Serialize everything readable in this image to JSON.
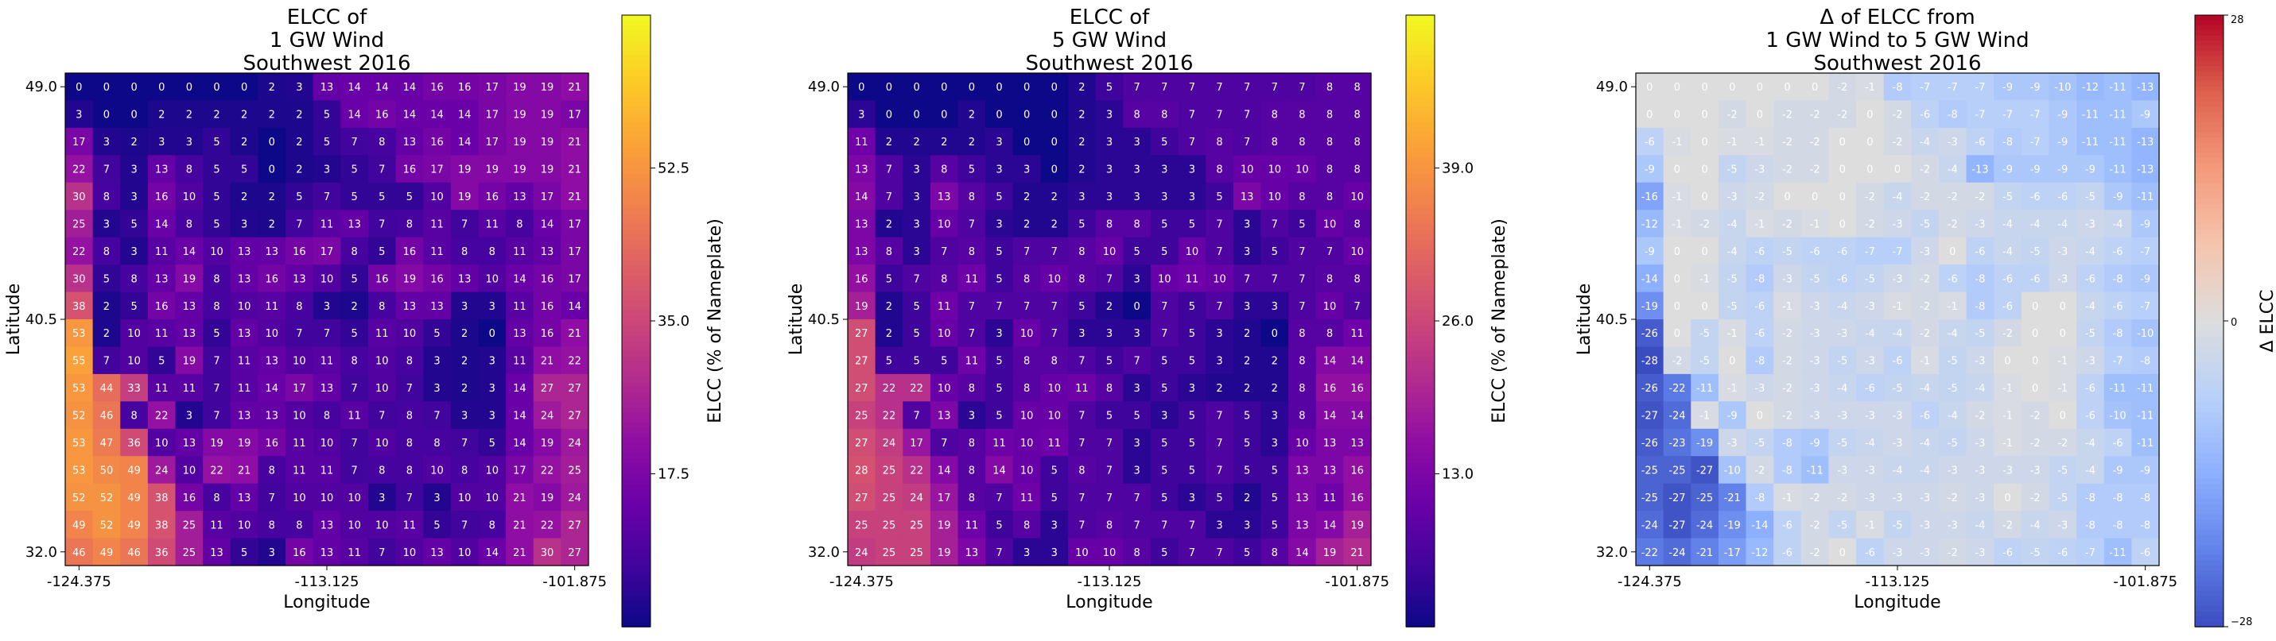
{
  "chart_data": [
    {
      "type": "heatmap",
      "title": [
        "ELCC of",
        "1 GW Wind",
        "Southwest 2016"
      ],
      "xlabel": "Longitude",
      "ylabel": "Latitude",
      "x_ticks": [
        "-124.375",
        "-113.125",
        "-101.875"
      ],
      "y_ticks": [
        "49.0",
        "40.5",
        "32.0"
      ],
      "colormap": "plasma",
      "colorbar_label": "ELCC (% of Nameplate)",
      "colorbar_ticks": [
        17.5,
        35.0,
        52.5
      ],
      "colorbar_tick_labels": [
        "17.5",
        "35.0",
        "52.5"
      ],
      "vmin": 0,
      "vmax": 70,
      "values": [
        [
          0,
          0,
          0,
          0,
          0,
          0,
          0,
          2,
          3,
          13,
          14,
          14,
          14,
          16,
          16,
          17,
          19,
          19,
          21
        ],
        [
          3,
          0,
          0,
          2,
          2,
          2,
          2,
          2,
          2,
          5,
          14,
          16,
          14,
          14,
          14,
          17,
          19,
          19,
          17
        ],
        [
          17,
          3,
          2,
          3,
          3,
          5,
          2,
          0,
          2,
          5,
          7,
          8,
          13,
          16,
          14,
          17,
          19,
          19,
          21
        ],
        [
          22,
          7,
          3,
          13,
          8,
          5,
          5,
          0,
          2,
          3,
          5,
          7,
          16,
          17,
          19,
          19,
          19,
          19,
          21
        ],
        [
          30,
          8,
          3,
          16,
          10,
          5,
          2,
          2,
          5,
          7,
          5,
          5,
          5,
          10,
          19,
          16,
          13,
          17,
          21
        ],
        [
          25,
          3,
          5,
          14,
          8,
          5,
          3,
          2,
          7,
          11,
          13,
          7,
          8,
          11,
          7,
          11,
          8,
          14,
          17
        ],
        [
          22,
          8,
          3,
          11,
          14,
          10,
          13,
          13,
          16,
          17,
          8,
          5,
          16,
          11,
          8,
          8,
          11,
          13,
          17
        ],
        [
          30,
          5,
          8,
          13,
          19,
          8,
          13,
          16,
          13,
          10,
          5,
          16,
          19,
          16,
          13,
          10,
          14,
          16,
          17
        ],
        [
          38,
          2,
          5,
          16,
          13,
          8,
          10,
          11,
          8,
          3,
          2,
          8,
          13,
          13,
          3,
          3,
          11,
          16,
          14
        ],
        [
          53,
          2,
          10,
          11,
          13,
          5,
          13,
          10,
          7,
          7,
          5,
          11,
          10,
          5,
          2,
          0,
          13,
          16,
          21
        ],
        [
          55,
          7,
          10,
          5,
          19,
          7,
          11,
          13,
          10,
          11,
          8,
          10,
          8,
          3,
          2,
          3,
          11,
          21,
          22
        ],
        [
          53,
          44,
          33,
          11,
          11,
          7,
          11,
          14,
          17,
          13,
          7,
          10,
          7,
          3,
          2,
          3,
          14,
          27,
          27
        ],
        [
          52,
          46,
          8,
          22,
          3,
          7,
          13,
          13,
          10,
          8,
          11,
          7,
          8,
          7,
          3,
          3,
          14,
          24,
          27
        ],
        [
          53,
          47,
          36,
          10,
          13,
          19,
          19,
          16,
          11,
          10,
          7,
          10,
          8,
          8,
          7,
          5,
          14,
          19,
          24
        ],
        [
          53,
          50,
          49,
          24,
          10,
          22,
          21,
          8,
          11,
          11,
          7,
          8,
          8,
          10,
          8,
          10,
          17,
          22,
          25
        ],
        [
          52,
          52,
          49,
          38,
          16,
          8,
          13,
          7,
          10,
          10,
          10,
          3,
          7,
          3,
          10,
          10,
          21,
          19,
          24
        ],
        [
          49,
          52,
          49,
          38,
          25,
          11,
          10,
          8,
          8,
          13,
          10,
          10,
          11,
          5,
          7,
          8,
          21,
          22,
          27
        ],
        [
          46,
          49,
          46,
          36,
          25,
          13,
          5,
          3,
          16,
          13,
          11,
          7,
          10,
          13,
          10,
          14,
          21,
          30,
          27
        ]
      ]
    },
    {
      "type": "heatmap",
      "title": [
        "ELCC of",
        "5 GW Wind",
        "Southwest 2016"
      ],
      "xlabel": "Longitude",
      "ylabel": "Latitude",
      "x_ticks": [
        "-124.375",
        "-113.125",
        "-101.875"
      ],
      "y_ticks": [
        "49.0",
        "40.5",
        "32.0"
      ],
      "colormap": "plasma",
      "colorbar_label": "ELCC (% of Nameplate)",
      "colorbar_ticks": [
        13.0,
        26.0,
        39.0
      ],
      "colorbar_tick_labels": [
        "13.0",
        "26.0",
        "39.0"
      ],
      "vmin": 0,
      "vmax": 52,
      "values": [
        [
          0,
          0,
          0,
          0,
          0,
          0,
          0,
          0,
          2,
          5,
          7,
          7,
          7,
          7,
          7,
          7,
          7,
          8,
          8
        ],
        [
          3,
          0,
          0,
          0,
          2,
          0,
          0,
          0,
          2,
          3,
          8,
          8,
          7,
          7,
          7,
          8,
          8,
          8,
          8
        ],
        [
          11,
          2,
          2,
          2,
          2,
          3,
          0,
          0,
          2,
          3,
          3,
          5,
          7,
          8,
          7,
          8,
          8,
          8,
          8
        ],
        [
          13,
          7,
          3,
          8,
          5,
          3,
          3,
          0,
          2,
          3,
          3,
          3,
          3,
          8,
          10,
          10,
          10,
          8,
          8
        ],
        [
          14,
          7,
          3,
          13,
          8,
          5,
          2,
          2,
          3,
          3,
          3,
          3,
          3,
          5,
          13,
          10,
          8,
          8,
          10
        ],
        [
          13,
          2,
          3,
          10,
          7,
          3,
          2,
          2,
          5,
          8,
          8,
          5,
          5,
          7,
          3,
          7,
          5,
          10,
          8
        ],
        [
          13,
          8,
          3,
          7,
          8,
          5,
          7,
          7,
          8,
          10,
          5,
          5,
          10,
          7,
          3,
          5,
          7,
          7,
          10
        ],
        [
          16,
          5,
          7,
          8,
          11,
          5,
          8,
          10,
          8,
          7,
          3,
          10,
          11,
          10,
          7,
          7,
          7,
          8,
          8
        ],
        [
          19,
          2,
          5,
          11,
          7,
          7,
          7,
          7,
          5,
          2,
          0,
          7,
          5,
          7,
          3,
          3,
          7,
          10,
          7
        ],
        [
          27,
          2,
          5,
          10,
          7,
          3,
          10,
          7,
          3,
          3,
          3,
          7,
          5,
          3,
          2,
          0,
          8,
          8,
          11
        ],
        [
          27,
          5,
          5,
          5,
          11,
          5,
          8,
          8,
          7,
          5,
          7,
          5,
          5,
          3,
          2,
          2,
          8,
          14,
          14
        ],
        [
          27,
          22,
          22,
          10,
          8,
          5,
          8,
          10,
          11,
          8,
          3,
          5,
          3,
          2,
          2,
          2,
          8,
          16,
          16
        ],
        [
          25,
          22,
          7,
          13,
          3,
          5,
          10,
          10,
          7,
          5,
          5,
          3,
          5,
          7,
          5,
          3,
          8,
          14,
          14
        ],
        [
          27,
          24,
          17,
          7,
          8,
          11,
          10,
          11,
          7,
          7,
          3,
          5,
          5,
          7,
          5,
          3,
          10,
          13,
          13
        ],
        [
          28,
          25,
          22,
          14,
          8,
          14,
          10,
          5,
          8,
          7,
          3,
          5,
          5,
          7,
          5,
          5,
          13,
          13,
          16
        ],
        [
          27,
          25,
          24,
          17,
          8,
          7,
          11,
          5,
          7,
          7,
          7,
          5,
          3,
          5,
          2,
          5,
          13,
          11,
          16
        ],
        [
          25,
          25,
          25,
          19,
          11,
          5,
          8,
          3,
          7,
          8,
          7,
          7,
          7,
          3,
          3,
          5,
          13,
          14,
          19
        ],
        [
          24,
          25,
          25,
          19,
          13,
          7,
          3,
          3,
          10,
          10,
          8,
          5,
          7,
          7,
          5,
          8,
          14,
          19,
          21
        ]
      ]
    },
    {
      "type": "heatmap",
      "title": [
        "Δ of ELCC from",
        "1 GW Wind to 5 GW Wind",
        "Southwest 2016"
      ],
      "xlabel": "Longitude",
      "ylabel": "Latitude",
      "x_ticks": [
        "-124.375",
        "-113.125",
        "-101.875"
      ],
      "y_ticks": [
        "49.0",
        "40.5",
        "32.0"
      ],
      "colormap": "coolwarm",
      "colorbar_label": "Δ ELCC",
      "colorbar_ticks": [
        -28,
        0,
        28
      ],
      "colorbar_tick_labels": [
        "−28",
        "0",
        "28"
      ],
      "vmin": -28,
      "vmax": 28,
      "values": [
        [
          0,
          0,
          0,
          0,
          0,
          0,
          0,
          -2,
          -1,
          -8,
          -7,
          -7,
          -7,
          -9,
          -9,
          -10,
          -12,
          -11,
          -13
        ],
        [
          0,
          0,
          0,
          -2,
          0,
          -2,
          -2,
          -2,
          0,
          -2,
          -6,
          -8,
          -7,
          -7,
          -7,
          -9,
          -11,
          -11,
          -9
        ],
        [
          -6,
          -1,
          0,
          -1,
          -1,
          -2,
          -2,
          0,
          0,
          -2,
          -4,
          -3,
          -6,
          -8,
          -7,
          -9,
          -11,
          -11,
          -13
        ],
        [
          -9,
          0,
          0,
          -5,
          -3,
          -2,
          -2,
          0,
          0,
          0,
          -2,
          -4,
          -13,
          -9,
          -9,
          -9,
          -9,
          -11,
          -13
        ],
        [
          -16,
          -1,
          0,
          -3,
          -2,
          0,
          0,
          0,
          -2,
          -4,
          -2,
          -2,
          -2,
          -5,
          -6,
          -6,
          -5,
          -9,
          -11
        ],
        [
          -12,
          -1,
          -2,
          -4,
          -1,
          -2,
          -1,
          0,
          -2,
          -3,
          -5,
          -2,
          -3,
          -4,
          -4,
          -4,
          -3,
          -4,
          -9
        ],
        [
          -9,
          0,
          0,
          -4,
          -6,
          -5,
          -6,
          -6,
          -7,
          -7,
          -3,
          0,
          -6,
          -4,
          -5,
          -3,
          -4,
          -6,
          -7
        ],
        [
          -14,
          0,
          -1,
          -5,
          -8,
          -3,
          -5,
          -6,
          -5,
          -3,
          -2,
          -6,
          -8,
          -6,
          -6,
          -3,
          -6,
          -8,
          -9
        ],
        [
          -19,
          0,
          0,
          -5,
          -6,
          -1,
          -3,
          -4,
          -3,
          -1,
          -2,
          -1,
          -8,
          -6,
          0,
          0,
          -4,
          -6,
          -7
        ],
        [
          -26,
          0,
          -5,
          -1,
          -6,
          -2,
          -3,
          -3,
          -4,
          -4,
          -2,
          -4,
          -5,
          -2,
          0,
          0,
          -5,
          -8,
          -10
        ],
        [
          -28,
          -2,
          -5,
          0,
          -8,
          -2,
          -3,
          -5,
          -3,
          -6,
          -1,
          -5,
          -3,
          0,
          0,
          -1,
          -3,
          -7,
          -8
        ],
        [
          -26,
          -22,
          -11,
          -1,
          -3,
          -2,
          -3,
          -4,
          -6,
          -5,
          -4,
          -5,
          -4,
          -1,
          0,
          -1,
          -6,
          -11,
          -11
        ],
        [
          -27,
          -24,
          -1,
          -9,
          0,
          -2,
          -3,
          -3,
          -3,
          -3,
          -6,
          -4,
          -2,
          -1,
          -2,
          0,
          -6,
          -10,
          -11
        ],
        [
          -26,
          -23,
          -19,
          -3,
          -5,
          -8,
          -9,
          -5,
          -4,
          -3,
          -4,
          -5,
          -3,
          -1,
          -2,
          -2,
          -4,
          -6,
          -11
        ],
        [
          -25,
          -25,
          -27,
          -10,
          -2,
          -8,
          -11,
          -3,
          -3,
          -4,
          -4,
          -3,
          -3,
          -3,
          -3,
          -5,
          -4,
          -9,
          -9
        ],
        [
          -25,
          -27,
          -25,
          -21,
          -8,
          -1,
          -2,
          -2,
          -3,
          -3,
          -3,
          -2,
          -3,
          0,
          -2,
          -5,
          -8,
          -8,
          -8
        ],
        [
          -24,
          -27,
          -24,
          -19,
          -14,
          -6,
          -2,
          -5,
          -1,
          -5,
          -3,
          -3,
          -4,
          -2,
          -4,
          -3,
          -8,
          -8,
          -8
        ],
        [
          -22,
          -24,
          -21,
          -17,
          -12,
          -6,
          -2,
          0,
          -6,
          -3,
          -3,
          -2,
          -3,
          -6,
          -5,
          -6,
          -7,
          -11,
          -6
        ]
      ]
    }
  ]
}
